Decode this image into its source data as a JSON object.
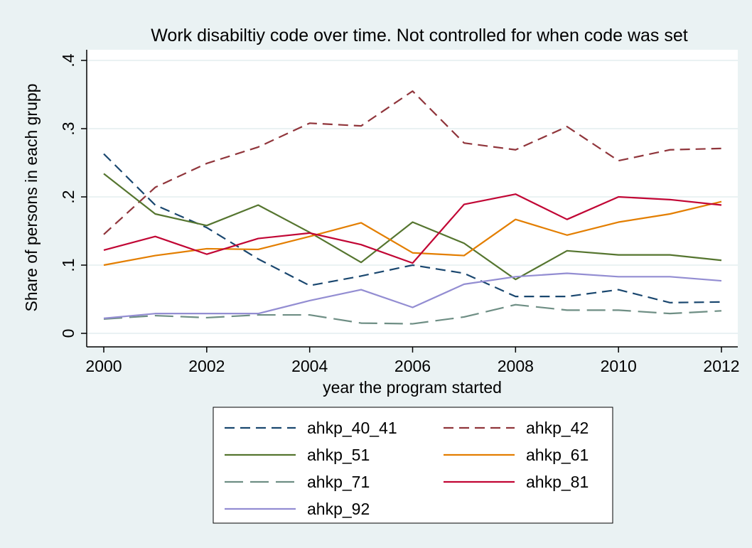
{
  "chart_data": {
    "type": "line",
    "title": "Work disabiltiy code over time. Not controlled for when code was set",
    "xlabel": "year the program started",
    "ylabel": "Share of persons in each grupp",
    "x": [
      2000,
      2001,
      2002,
      2003,
      2004,
      2005,
      2006,
      2007,
      2008,
      2009,
      2010,
      2011,
      2012
    ],
    "x_ticks": [
      2000,
      2002,
      2004,
      2006,
      2008,
      2010,
      2012
    ],
    "x_tick_labels": [
      "2000",
      "2002",
      "2004",
      "2006",
      "2008",
      "2010",
      "2012"
    ],
    "y_ticks": [
      0,
      0.1,
      0.2,
      0.3,
      0.4
    ],
    "y_tick_labels": [
      "0",
      ".1",
      ".2",
      ".3",
      ".4"
    ],
    "xlim": [
      2000,
      2012
    ],
    "ylim": [
      0,
      0.4
    ],
    "grid": true,
    "legend_position": "bottom",
    "series": [
      {
        "name": "ahkp_40_41",
        "color": "#1a476f",
        "dash": "dash",
        "values": [
          0.263,
          0.188,
          0.155,
          0.109,
          0.07,
          0.084,
          0.1,
          0.088,
          0.054,
          0.054,
          0.064,
          0.045,
          0.046
        ]
      },
      {
        "name": "ahkp_42",
        "color": "#90353b",
        "dash": "dash",
        "values": [
          0.145,
          0.214,
          0.249,
          0.273,
          0.308,
          0.304,
          0.355,
          0.279,
          0.269,
          0.303,
          0.253,
          0.269,
          0.271
        ]
      },
      {
        "name": "ahkp_51",
        "color": "#55752f",
        "dash": "solid",
        "values": [
          0.234,
          0.175,
          0.158,
          0.188,
          0.148,
          0.104,
          0.163,
          0.132,
          0.079,
          0.121,
          0.115,
          0.115,
          0.107
        ]
      },
      {
        "name": "ahkp_61",
        "color": "#e37e00",
        "dash": "solid",
        "values": [
          0.1,
          0.114,
          0.124,
          0.123,
          0.142,
          0.162,
          0.118,
          0.114,
          0.167,
          0.144,
          0.163,
          0.175,
          0.193
        ]
      },
      {
        "name": "ahkp_71",
        "color": "#6e8e84",
        "dash": "longdash",
        "values": [
          0.021,
          0.026,
          0.023,
          0.027,
          0.027,
          0.015,
          0.014,
          0.024,
          0.042,
          0.034,
          0.034,
          0.029,
          0.033
        ]
      },
      {
        "name": "ahkp_81",
        "color": "#c10534",
        "dash": "solid",
        "values": [
          0.122,
          0.142,
          0.116,
          0.139,
          0.147,
          0.13,
          0.103,
          0.189,
          0.204,
          0.167,
          0.2,
          0.196,
          0.188
        ]
      },
      {
        "name": "ahkp_92",
        "color": "#938dd2",
        "dash": "solid",
        "values": [
          0.022,
          0.029,
          0.029,
          0.029,
          0.048,
          0.064,
          0.038,
          0.072,
          0.083,
          0.088,
          0.083,
          0.083,
          0.077
        ]
      }
    ]
  }
}
